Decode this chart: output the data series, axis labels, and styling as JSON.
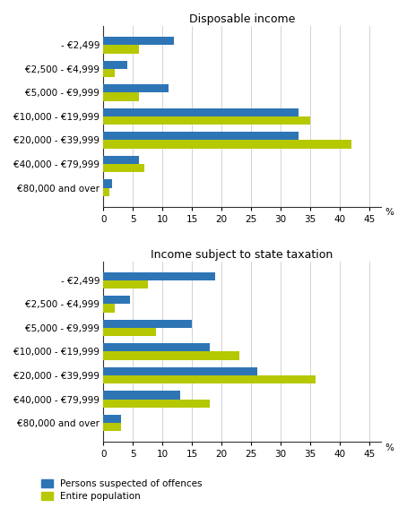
{
  "categories": [
    "- €2,499",
    "€2,500 - €4,999",
    "€5,000 - €9,999",
    "€10,000 - €19,999",
    "€20,000 - €39,999",
    "€40,000 - €79,999",
    "€80,000 and over"
  ],
  "disposable_suspected": [
    12,
    4,
    11,
    33,
    33,
    6,
    1.5
  ],
  "disposable_population": [
    6,
    2,
    6,
    35,
    42,
    7,
    1
  ],
  "taxation_suspected": [
    19,
    4.5,
    15,
    18,
    26,
    13,
    3
  ],
  "taxation_population": [
    7.5,
    2,
    9,
    23,
    36,
    18,
    3
  ],
  "color_suspected": "#2e75b6",
  "color_population": "#b5c800",
  "title1": "Disposable income",
  "title2": "Income subject to state taxation",
  "xlim": [
    0,
    47
  ],
  "xticks": [
    0,
    5,
    10,
    15,
    20,
    25,
    30,
    35,
    40,
    45
  ],
  "legend_suspected": "Persons suspected of offences",
  "legend_population": "Entire population",
  "bar_height": 0.35,
  "tick_fontsize": 7.5,
  "title_fontsize": 9,
  "label_fontsize": 7.5
}
